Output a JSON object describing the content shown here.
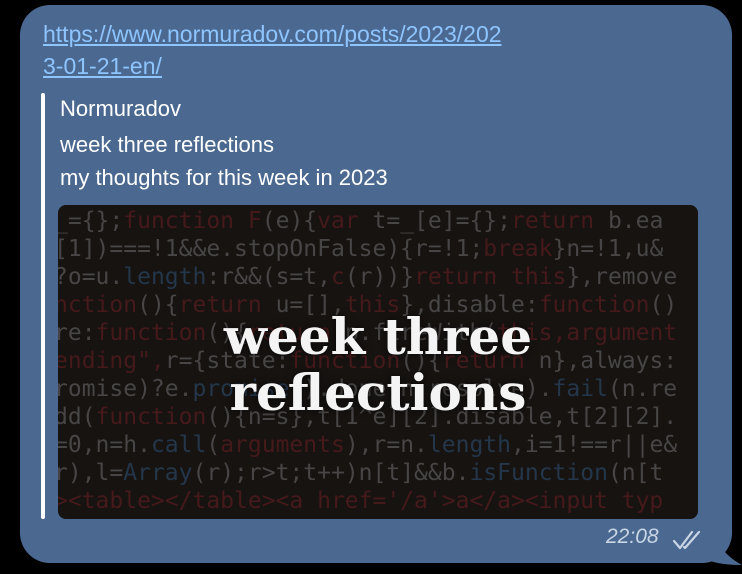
{
  "message": {
    "link_text": "https://www.normuradov.com/posts/2023/2023-01-21-en/",
    "time": "22:08",
    "status_icon": "double-check-icon"
  },
  "preview": {
    "site_name": "Normuradov",
    "title": "week three reflections",
    "description": "my thoughts for this week in 2023",
    "image_caption_line1": "week three",
    "image_caption_line2": "reflections"
  },
  "colors": {
    "bubble": "#4b6990",
    "link": "#8ec5ff",
    "background": "#000000"
  }
}
